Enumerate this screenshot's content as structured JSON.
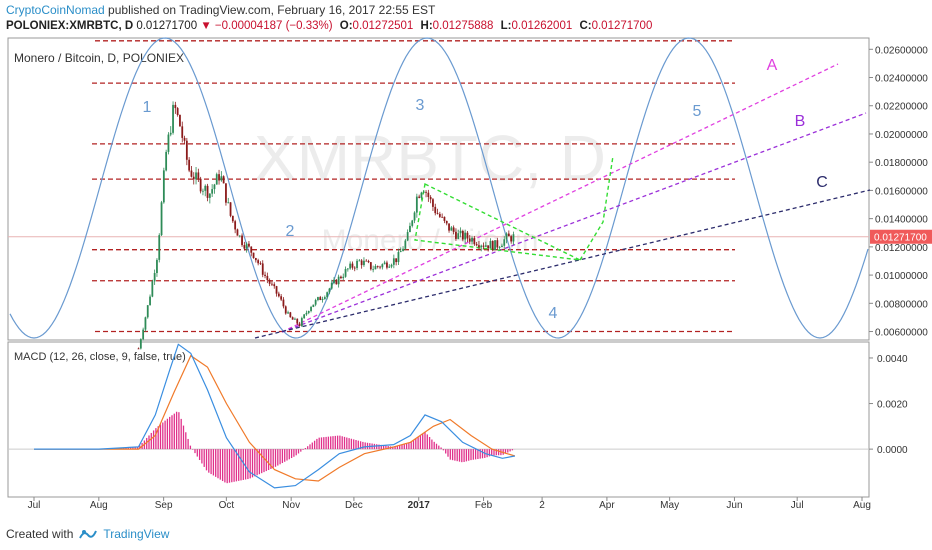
{
  "header": {
    "author": "CryptoCoinNomad",
    "published": " published on TradingView.com, February 16, 2017 22:55 EST"
  },
  "ticker": {
    "symbol": "POLONIEX:XMRBTC, D",
    "last": "0.01271700",
    "change": "−0.00004187 (−0.33%)",
    "open_label": "O:",
    "open": "0.01272501",
    "high_label": "H:",
    "high": "0.01275888",
    "low_label": "L:",
    "low": "0.01262001",
    "close_label": "C:",
    "close": "0.01271700"
  },
  "footer": {
    "created_with": "Created with",
    "brand": "TradingView"
  },
  "colors": {
    "bull": "#2e8b57",
    "bear": "#8b1a1a",
    "wave": "#6a9ad0",
    "level": "#b22222",
    "fib": "#e8b4b4",
    "magenta": "#e040e0",
    "purple": "#9b30d9",
    "navy": "#2c2c6c",
    "green_dash": "#33dd33",
    "macd": "#3a8ee0",
    "signal": "#f07a2a",
    "hist": "#e0308a",
    "price_tag": "#f05a5a"
  },
  "chart_data": [
    {
      "type": "candlestick",
      "title": "Monero / Bitcoin, D, POLONIEX",
      "watermark": "XMRBTC, D",
      "watermark_sub": "Monero / Bitcoin",
      "x_ticks": [
        "Jul",
        "Aug",
        "Sep",
        "Oct",
        "Nov",
        "Dec",
        "2017",
        "Feb",
        "2",
        "Apr",
        "May",
        "Jun",
        "Jul",
        "Aug"
      ],
      "y_ticks": [
        "0.02600000",
        "0.02400000",
        "0.02200000",
        "0.02000000",
        "0.01800000",
        "0.01600000",
        "0.01400000",
        "0.01200000",
        "0.01000000",
        "0.00800000",
        "0.00600000"
      ],
      "y_range": [
        0.0054,
        0.0268
      ],
      "last_price": "0.01271700",
      "wave_labels": [
        "1",
        "2",
        "3",
        "4",
        "5"
      ],
      "trendline_labels": [
        "A",
        "B",
        "C"
      ],
      "horizontal_levels": [
        0.0266,
        0.0236,
        0.0193,
        0.0168,
        0.0118,
        0.0096,
        0.006
      ],
      "price_path": [
        [
          "2016-08-20",
          0.0048
        ],
        [
          "2016-08-25",
          0.0082
        ],
        [
          "2016-08-29",
          0.0115
        ],
        [
          "2016-09-02",
          0.0185
        ],
        [
          "2016-09-06",
          0.022
        ],
        [
          "2016-09-09",
          0.0205
        ],
        [
          "2016-09-13",
          0.0175
        ],
        [
          "2016-09-18",
          0.0165
        ],
        [
          "2016-09-23",
          0.0158
        ],
        [
          "2016-09-28",
          0.0172
        ],
        [
          "2016-10-03",
          0.0142
        ],
        [
          "2016-10-08",
          0.0125
        ],
        [
          "2016-10-14",
          0.0115
        ],
        [
          "2016-10-20",
          0.0098
        ],
        [
          "2016-10-26",
          0.0085
        ],
        [
          "2016-10-31",
          0.007
        ],
        [
          "2016-11-05",
          0.0065
        ],
        [
          "2016-11-10",
          0.0078
        ],
        [
          "2016-11-16",
          0.0085
        ],
        [
          "2016-11-22",
          0.0095
        ],
        [
          "2016-11-28",
          0.0104
        ],
        [
          "2016-12-04",
          0.011
        ],
        [
          "2016-12-10",
          0.0105
        ],
        [
          "2016-12-16",
          0.0108
        ],
        [
          "2016-12-22",
          0.0112
        ],
        [
          "2016-12-27",
          0.0128
        ],
        [
          "2016-12-31",
          0.0155
        ],
        [
          "2017-01-03",
          0.0164
        ],
        [
          "2017-01-08",
          0.0148
        ],
        [
          "2017-01-14",
          0.0135
        ],
        [
          "2017-01-20",
          0.0128
        ],
        [
          "2017-01-26",
          0.0126
        ],
        [
          "2017-02-01",
          0.0122
        ],
        [
          "2017-02-07",
          0.0121
        ],
        [
          "2017-02-12",
          0.0126
        ],
        [
          "2017-02-16",
          0.012717
        ]
      ]
    },
    {
      "type": "line",
      "title": "MACD (12, 26, close, 9, false, true)",
      "y_ticks": [
        "0.0040",
        "0.0020",
        "0.0000"
      ],
      "y_range": [
        -0.0021,
        0.0047
      ],
      "macd": [
        [
          "2016-07-01",
          0.0
        ],
        [
          "2016-08-01",
          0.0
        ],
        [
          "2016-08-20",
          0.0001
        ],
        [
          "2016-08-28",
          0.0015
        ],
        [
          "2016-09-04",
          0.0035
        ],
        [
          "2016-09-08",
          0.0046
        ],
        [
          "2016-09-14",
          0.0042
        ],
        [
          "2016-09-22",
          0.0026
        ],
        [
          "2016-10-01",
          0.0005
        ],
        [
          "2016-10-12",
          -0.001
        ],
        [
          "2016-10-24",
          -0.0017
        ],
        [
          "2016-11-03",
          -0.0016
        ],
        [
          "2016-11-14",
          -0.0009
        ],
        [
          "2016-11-24",
          -0.0002
        ],
        [
          "2016-12-06",
          0.0001
        ],
        [
          "2016-12-20",
          0.0002
        ],
        [
          "2016-12-28",
          0.0006
        ],
        [
          "2017-01-04",
          0.0015
        ],
        [
          "2017-01-12",
          0.0012
        ],
        [
          "2017-01-22",
          0.0003
        ],
        [
          "2017-02-02",
          -0.0002
        ],
        [
          "2017-02-10",
          -0.0004
        ],
        [
          "2017-02-16",
          -0.0003
        ]
      ],
      "signal": [
        [
          "2016-07-01",
          0.0
        ],
        [
          "2016-08-01",
          0.0
        ],
        [
          "2016-08-20",
          0.0
        ],
        [
          "2016-08-28",
          0.0006
        ],
        [
          "2016-09-06",
          0.0025
        ],
        [
          "2016-09-14",
          0.0041
        ],
        [
          "2016-09-22",
          0.0036
        ],
        [
          "2016-10-01",
          0.002
        ],
        [
          "2016-10-12",
          0.0003
        ],
        [
          "2016-10-24",
          -0.0009
        ],
        [
          "2016-11-03",
          -0.0013
        ],
        [
          "2016-11-14",
          -0.0014
        ],
        [
          "2016-11-24",
          -0.0008
        ],
        [
          "2016-12-06",
          -0.0002
        ],
        [
          "2016-12-20",
          0.0001
        ],
        [
          "2016-12-28",
          0.0003
        ],
        [
          "2017-01-08",
          0.001
        ],
        [
          "2017-01-16",
          0.0013
        ],
        [
          "2017-01-26",
          0.0006
        ],
        [
          "2017-02-05",
          0.0
        ],
        [
          "2017-02-16",
          -0.0003
        ]
      ]
    }
  ]
}
